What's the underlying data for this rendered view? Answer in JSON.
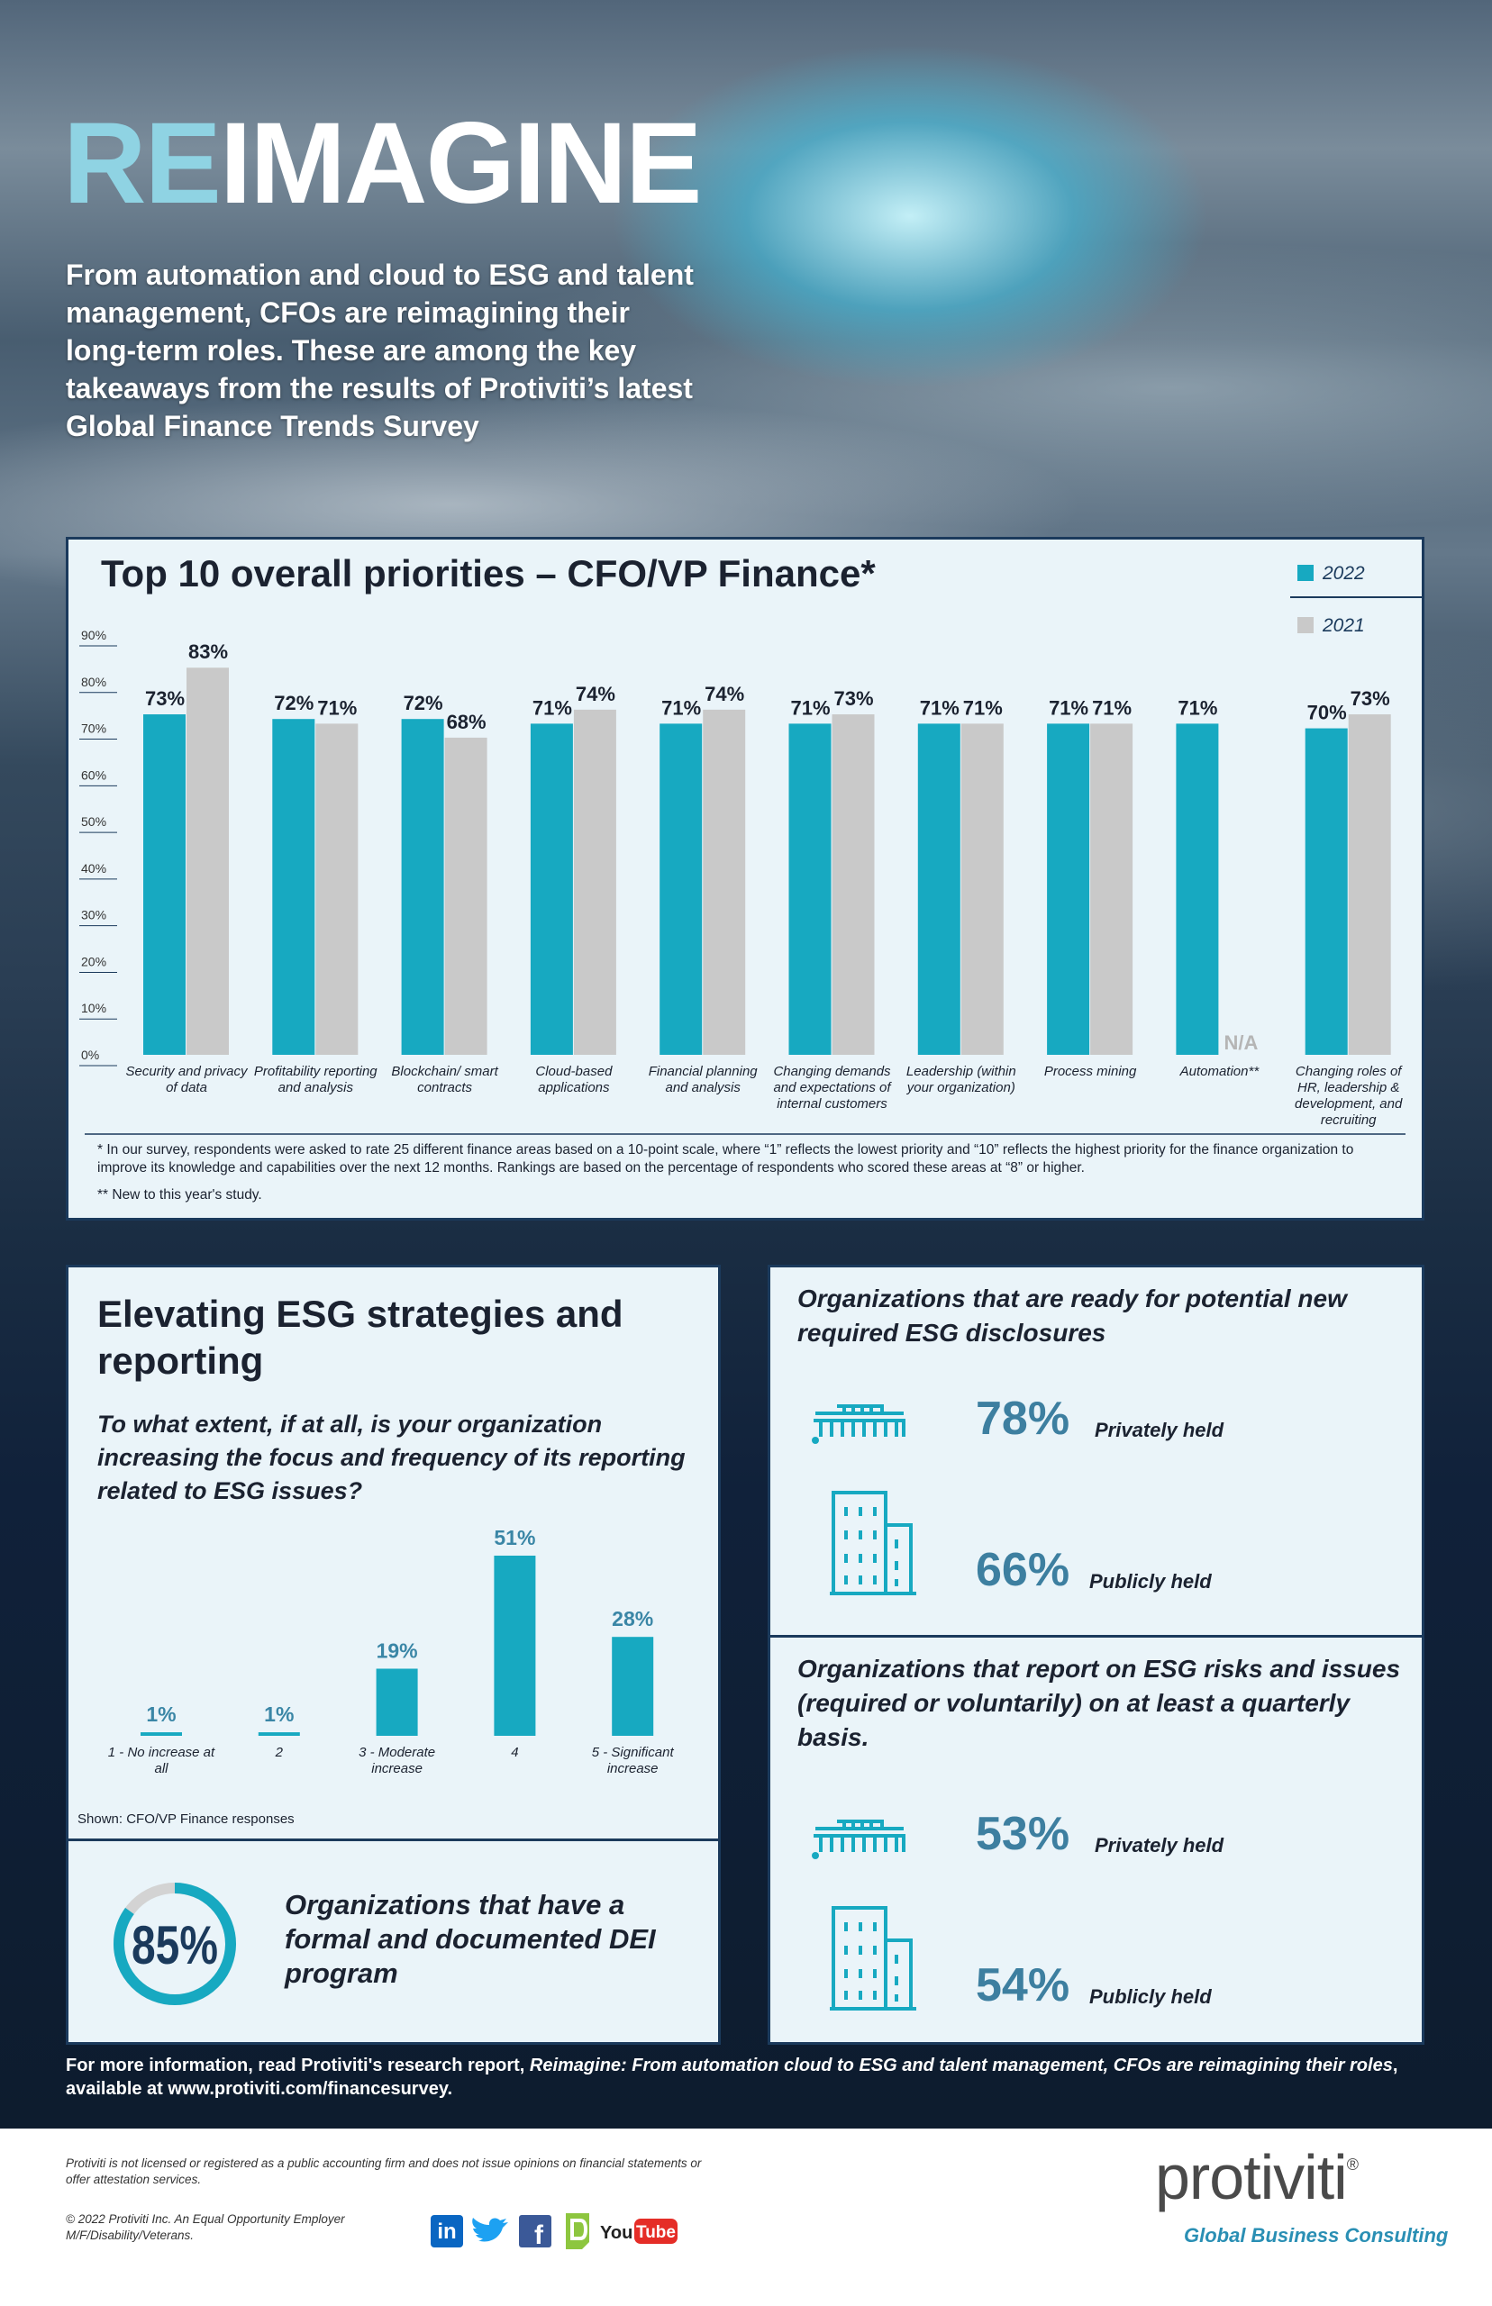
{
  "header": {
    "title": [
      "RE",
      "IMAGINE"
    ],
    "intro": [
      "From automation and cloud to ESG and talent",
      "management, CFOs are reimagining their",
      "long-term roles. These are among the key",
      "takeaways from the results of Protiviti’s latest",
      "Global Finance Trends Survey"
    ]
  },
  "chart_data": [
    {
      "type": "bar",
      "title": "Top 10 overall priorities – CFO/VP Finance*",
      "categories": [
        "Security and privacy of data",
        "Profitability reporting and analysis",
        "Blockchain/ smart contracts",
        "Cloud-based applications",
        "Financial planning and analysis",
        "Changing demands and expectations of internal customers",
        "Leadership (within your organization)",
        "Process mining",
        "Automation**",
        "Changing roles of HR, leadership & development, and recruiting"
      ],
      "series": [
        {
          "name": "2022",
          "color": "#17a9c1",
          "values": [
            73,
            72,
            72,
            71,
            71,
            71,
            71,
            71,
            71,
            70
          ],
          "value_labels": [
            "73%",
            "72%",
            "72%",
            "71%",
            "71%",
            "71%",
            "71%",
            "71%",
            "71%",
            "70%"
          ]
        },
        {
          "name": "2021",
          "color": "#c9c9c9",
          "values": [
            83,
            71,
            68,
            74,
            74,
            73,
            71,
            71,
            null,
            73
          ],
          "value_labels": [
            "83%",
            "71%",
            "68%",
            "74%",
            "74%",
            "73%",
            "71%",
            "71%",
            "N/A",
            "73%"
          ]
        }
      ],
      "ylim": [
        0,
        90
      ],
      "yticks": [
        {
          "value": 0,
          "label": "0%"
        },
        {
          "value": 10,
          "label": "10%"
        },
        {
          "value": 20,
          "label": "20%"
        },
        {
          "value": 30,
          "label": "30%"
        },
        {
          "value": 40,
          "label": "40%"
        },
        {
          "value": 50,
          "label": "50%"
        },
        {
          "value": 60,
          "label": "60%"
        },
        {
          "value": 70,
          "label": "70%"
        },
        {
          "value": 80,
          "label": "80%"
        },
        {
          "value": 90,
          "label": "90%"
        }
      ],
      "legend": "top-right",
      "notes": [
        "* In our survey, respondents were asked to rate 25 different finance areas based on a 10-point scale, where “1” reflects the lowest priority and “10” reflects the highest priority for the finance organization to improve its knowledge and capabilities over the next 12 months. Rankings are based on the percentage of respondents who scored these areas at “8” or higher.",
        "** New to this year's study."
      ]
    },
    {
      "type": "bar",
      "title": "Elevating ESG strategies and reporting",
      "subtitle": "To what extent, if at all, is your organization increasing the focus and frequency of its reporting related to ESG issues?",
      "categories": [
        "1 - No increase at all",
        "2",
        "3 - Moderate increase",
        "4",
        "5 - Significant increase"
      ],
      "values": [
        1,
        1,
        19,
        51,
        28
      ],
      "value_labels": [
        "1%",
        "1%",
        "19%",
        "51%",
        "28%"
      ],
      "color": "#17a9c1",
      "note": "Shown: CFO/VP Finance responses"
    },
    {
      "type": "donut",
      "values": [
        85
      ],
      "value_labels": [
        "85%"
      ],
      "color": "#17a9c1",
      "label": "Organizations that have a formal and documented DEI program"
    }
  ],
  "stats": [
    {
      "title": "Organizations that are ready for potential new required ESG disclosures",
      "items": [
        {
          "value": "78%",
          "label": "Privately held"
        },
        {
          "value": "66%",
          "label": "Publicly held"
        }
      ]
    },
    {
      "title": "Organizations that report on ESG risks and issues (required or voluntarily) on at least a quarterly basis.",
      "items": [
        {
          "value": "53%",
          "label": "Privately held"
        },
        {
          "value": "54%",
          "label": "Publicly held"
        }
      ]
    }
  ],
  "footer": {
    "more": [
      "For more information, read Protiviti's research report, ",
      "Reimagine: From automation cloud to ESG and talent management, CFOs are reimagining their roles",
      ", available at www.protiviti.com/financesurvey."
    ],
    "disclaimer": "Protiviti is not licensed or registered as a public accounting firm and does not issue opinions on financial statements or offer attestation services.",
    "copyright": "© 2022 Protiviti Inc. An Equal Opportunity Employer M/F/Disability/Veterans.",
    "social": [
      "in",
      "f",
      "You",
      "Tube"
    ],
    "logo": "protiviti",
    "registered": "®",
    "tagline": "Global Business Consulting"
  }
}
